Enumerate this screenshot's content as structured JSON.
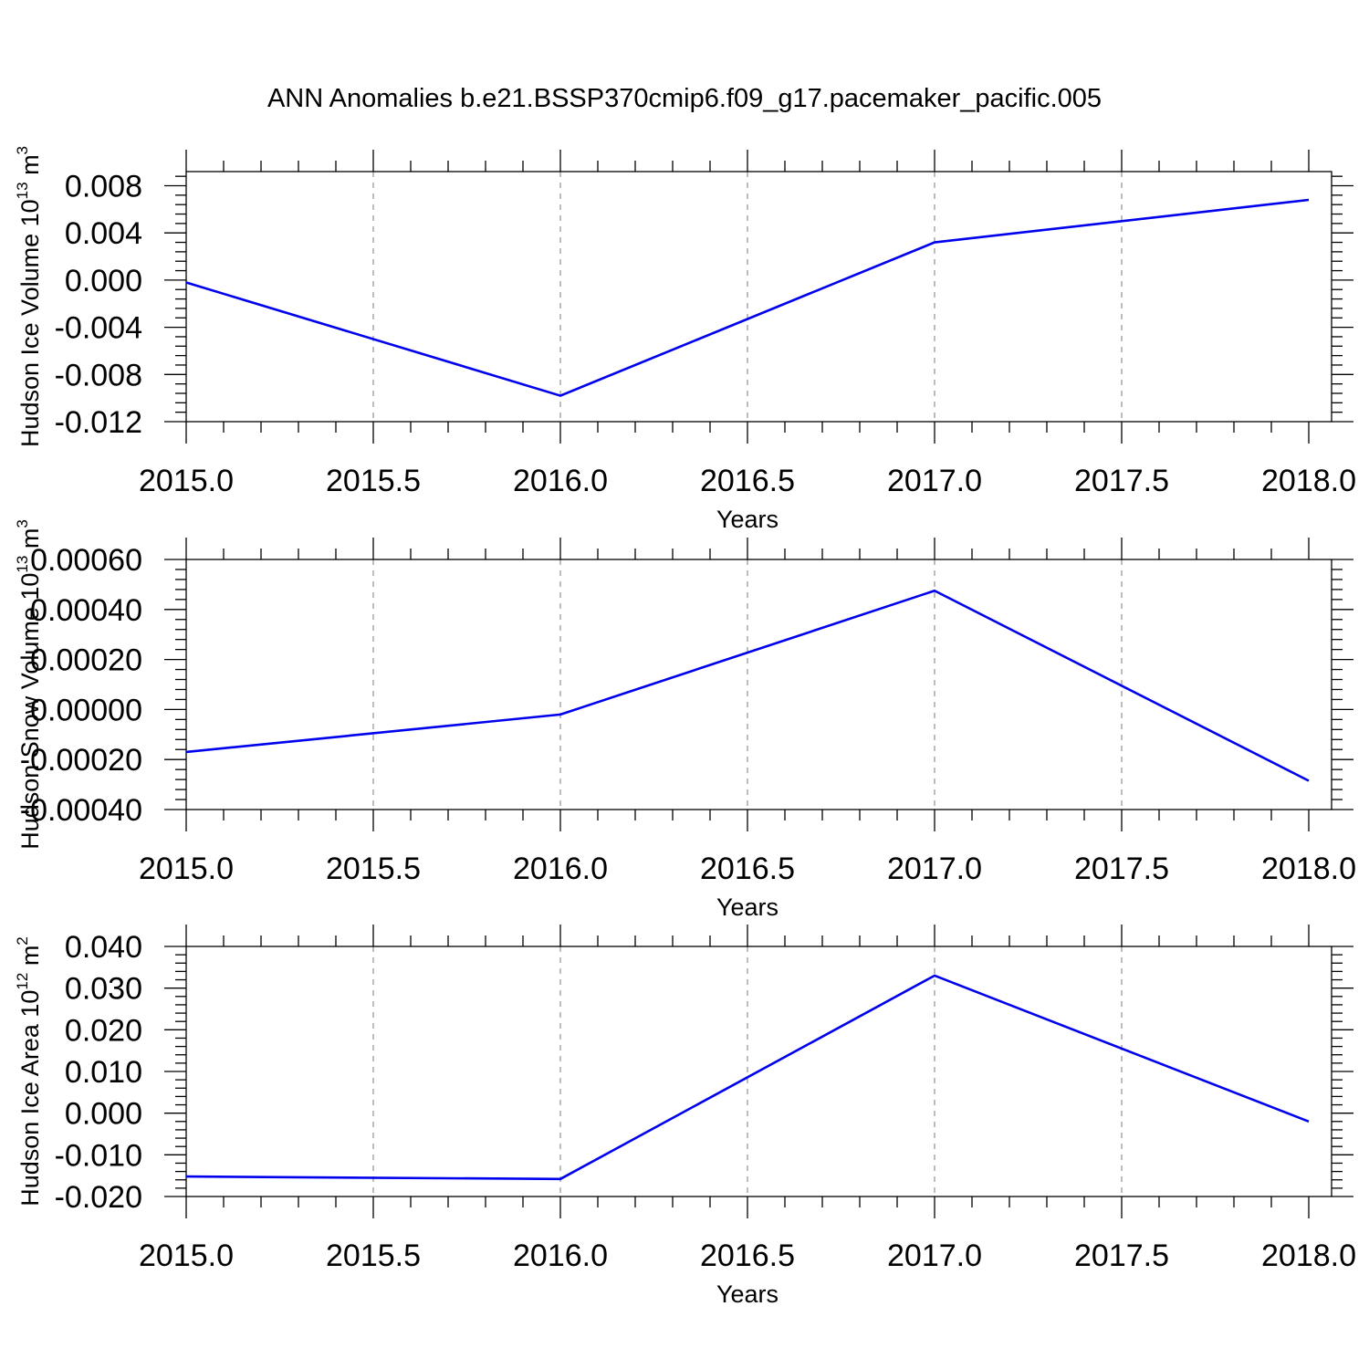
{
  "figure": {
    "title": "ANN Anomalies b.e21.BSSP370cmip6.f09_g17.pacemaker_pacific.005"
  },
  "colors": {
    "series": "#0000ee",
    "grid": "#999999",
    "axis": "#000000"
  },
  "chart_data": [
    {
      "type": "line",
      "xlabel": "Years",
      "ylabel": "Hudson Ice Volume 10",
      "ylabel_sup": "13",
      "ylabel_unit": " m",
      "ylabel_unit_sup": "3",
      "xlim": [
        2015.0,
        2018.0
      ],
      "ylim": [
        -0.012,
        0.0092
      ],
      "x_ticks": [
        2015.0,
        2015.5,
        2016.0,
        2016.5,
        2017.0,
        2017.5,
        2018.0
      ],
      "x_tick_labels": [
        "2015.0",
        "2015.5",
        "2016.0",
        "2016.5",
        "2017.0",
        "2017.5",
        "2018.0"
      ],
      "y_ticks": [
        -0.012,
        -0.008,
        -0.004,
        0.0,
        0.004,
        0.008
      ],
      "y_tick_labels": [
        "-0.012",
        "-0.008",
        "-0.004",
        "0.000",
        "0.004",
        "0.008"
      ],
      "grid": "x-dashed",
      "series": [
        {
          "x": [
            2015,
            2016,
            2017,
            2018
          ],
          "values": [
            -0.0002,
            -0.0098,
            0.0032,
            0.0068
          ]
        }
      ]
    },
    {
      "type": "line",
      "xlabel": "Years",
      "ylabel": "Hudson Snow Volume 10",
      "ylabel_sup": "13",
      "ylabel_unit": " m",
      "ylabel_unit_sup": "3",
      "xlim": [
        2015.0,
        2018.0
      ],
      "ylim": [
        -0.0004,
        0.0006
      ],
      "x_ticks": [
        2015.0,
        2015.5,
        2016.0,
        2016.5,
        2017.0,
        2017.5,
        2018.0
      ],
      "x_tick_labels": [
        "2015.0",
        "2015.5",
        "2016.0",
        "2016.5",
        "2017.0",
        "2017.5",
        "2018.0"
      ],
      "y_ticks": [
        -0.0004,
        -0.0002,
        0.0,
        0.0002,
        0.0004,
        0.0006
      ],
      "y_tick_labels": [
        "-0.00040",
        "-0.00020",
        "0.00000",
        "0.00020",
        "0.00040",
        "0.00060"
      ],
      "grid": "x-dashed",
      "series": [
        {
          "x": [
            2015,
            2016,
            2017,
            2018
          ],
          "values": [
            -0.00017,
            -2e-05,
            0.000475,
            -0.000285
          ]
        }
      ]
    },
    {
      "type": "line",
      "xlabel": "Years",
      "ylabel": "Hudson Ice Area 10",
      "ylabel_sup": "12",
      "ylabel_unit": " m",
      "ylabel_unit_sup": "2",
      "xlim": [
        2015.0,
        2018.0
      ],
      "ylim": [
        -0.02,
        0.04
      ],
      "x_ticks": [
        2015.0,
        2015.5,
        2016.0,
        2016.5,
        2017.0,
        2017.5,
        2018.0
      ],
      "x_tick_labels": [
        "2015.0",
        "2015.5",
        "2016.0",
        "2016.5",
        "2017.0",
        "2017.5",
        "2018.0"
      ],
      "y_ticks": [
        -0.02,
        -0.01,
        0.0,
        0.01,
        0.02,
        0.03,
        0.04
      ],
      "y_tick_labels": [
        "-0.020",
        "-0.010",
        "0.000",
        "0.010",
        "0.020",
        "0.030",
        "0.040"
      ],
      "grid": "x-dashed",
      "series": [
        {
          "x": [
            2015,
            2016,
            2017,
            2018
          ],
          "values": [
            -0.0152,
            -0.0158,
            0.033,
            -0.002
          ]
        }
      ]
    }
  ]
}
